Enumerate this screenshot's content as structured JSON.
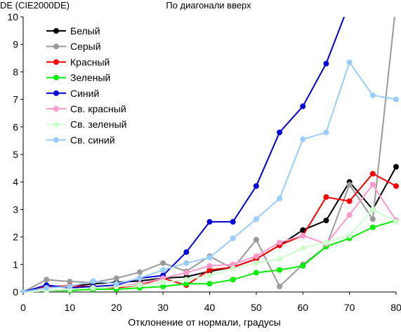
{
  "chart_data": {
    "type": "line",
    "title": "По диагонали вверх",
    "ylabel": "DE (CIE2000DE)",
    "xlabel": "Отклонение от нормали, градусы",
    "xlim": [
      0,
      80
    ],
    "ylim": [
      0,
      10
    ],
    "x_ticks": [
      0,
      10,
      20,
      30,
      40,
      50,
      60,
      70,
      80
    ],
    "y_ticks": [
      0,
      1,
      2,
      3,
      4,
      5,
      6,
      7,
      8,
      9,
      10
    ],
    "grid": false,
    "legend_position": "top-left",
    "x": [
      0,
      5,
      10,
      15,
      20,
      25,
      30,
      35,
      40,
      45,
      50,
      55,
      60,
      65,
      70,
      75,
      80
    ],
    "series": [
      {
        "name": "Белый",
        "color": "#000000",
        "values": [
          0,
          0.18,
          0.2,
          0.3,
          0.35,
          0.4,
          0.5,
          0.55,
          0.75,
          0.9,
          1.2,
          1.7,
          2.25,
          2.6,
          4.0,
          3.0,
          4.55
        ]
      },
      {
        "name": "Серый",
        "color": "#999999",
        "values": [
          0,
          0.45,
          0.38,
          0.35,
          0.5,
          0.72,
          1.05,
          0.75,
          1.3,
          0.85,
          1.9,
          0.2,
          1.0,
          1.65,
          3.9,
          2.65,
          10.5
        ]
      },
      {
        "name": "Красный",
        "color": "#ff0000",
        "values": [
          0,
          0.2,
          0.22,
          0.2,
          0.15,
          0.25,
          0.5,
          0.25,
          0.8,
          0.9,
          1.2,
          1.7,
          2.05,
          3.45,
          3.3,
          4.3,
          3.85
        ]
      },
      {
        "name": "Зеленый",
        "color": "#00ee00",
        "values": [
          0,
          0.05,
          0.05,
          0.1,
          0.1,
          0.15,
          0.2,
          0.3,
          0.3,
          0.45,
          0.7,
          0.8,
          0.95,
          1.65,
          1.95,
          2.35,
          2.6
        ]
      },
      {
        "name": "Синий",
        "color": "#0000dd",
        "values": [
          0,
          0.25,
          0.15,
          0.2,
          0.25,
          0.5,
          0.6,
          1.45,
          2.55,
          2.55,
          3.85,
          5.8,
          6.75,
          8.3,
          10.5,
          null,
          null
        ]
      },
      {
        "name": "Св. красный",
        "color": "#ff99cc",
        "values": [
          0,
          0.05,
          0.1,
          0.15,
          0.2,
          0.3,
          0.5,
          0.7,
          0.95,
          1.0,
          1.3,
          1.8,
          2.05,
          1.75,
          2.8,
          3.9,
          2.6
        ]
      },
      {
        "name": "Св. зеленый",
        "color": "#ccffcc",
        "values": [
          0,
          0.05,
          0.1,
          0.15,
          0.2,
          0.25,
          0.35,
          0.45,
          0.6,
          0.85,
          1.05,
          1.2,
          1.6,
          1.8,
          2.05,
          3.0,
          2.55
        ]
      },
      {
        "name": "Св. синий",
        "color": "#99ccff",
        "values": [
          0,
          0.15,
          0.2,
          0.4,
          0.3,
          0.5,
          0.8,
          1.05,
          1.25,
          1.95,
          2.65,
          3.4,
          5.55,
          5.8,
          8.35,
          7.15,
          7.0
        ]
      }
    ]
  }
}
